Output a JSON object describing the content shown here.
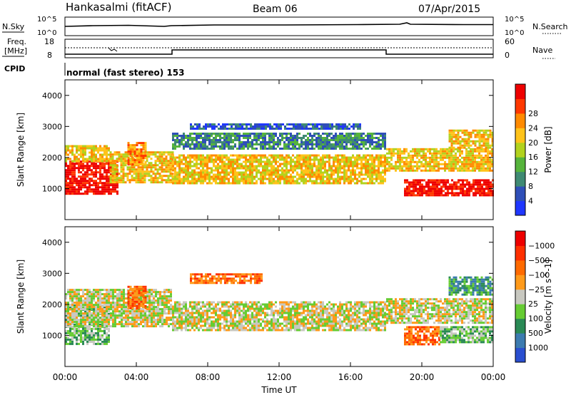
{
  "header": {
    "station": "Hankasalmi (fitACF)",
    "beam": "Beam 06",
    "date": "07/Apr/2015"
  },
  "noise_panel": {
    "left_label": "N.Sky",
    "right_label": "N.Search",
    "left_ticks": [
      "10^5",
      "10^0"
    ],
    "right_ticks": [
      "10^5",
      "10^0"
    ]
  },
  "freq_panel": {
    "left_label_1": "Freq.",
    "left_label_2": "[MHz]",
    "left_ticks": [
      "18",
      "8"
    ],
    "right_label": "Nave",
    "right_ticks": [
      "60",
      "0"
    ],
    "cpid_label": "CPID",
    "cpid_text": "normal (fast stereo) 153"
  },
  "chart_data": [
    {
      "type": "heatmap",
      "title": "",
      "xlabel": "Time UT",
      "ylabel": "Slant Range [km]",
      "x_ticks": [
        "00:00",
        "04:00",
        "08:00",
        "12:00",
        "16:00",
        "20:00",
        "00:00"
      ],
      "y_ticks": [
        "1000",
        "2000",
        "3000",
        "4000"
      ],
      "xlim_hours": [
        0,
        24
      ],
      "ylim_km": [
        0,
        4500
      ],
      "colorbar": {
        "label": "Power [dB]",
        "ticks": [
          "4",
          "8",
          "12",
          "16",
          "20",
          "24",
          "28"
        ],
        "colors": [
          "#1f37ff",
          "#2f4fb8",
          "#3f8a73",
          "#56b43c",
          "#b2d21e",
          "#ffc31a",
          "#ff8a00",
          "#ff3800",
          "#ee0000"
        ]
      },
      "echo_regions": [
        {
          "t0": 0.0,
          "t1": 3.0,
          "r0": 800,
          "r1": 1900,
          "level": 8
        },
        {
          "t0": 0.0,
          "t1": 2.5,
          "r0": 1900,
          "r1": 2400,
          "level": 5
        },
        {
          "t0": 2.5,
          "t1": 6.0,
          "r0": 1200,
          "r1": 2200,
          "level": 5
        },
        {
          "t0": 3.5,
          "t1": 4.5,
          "r0": 1800,
          "r1": 2500,
          "level": 6
        },
        {
          "t0": 6.0,
          "t1": 18.0,
          "r0": 1200,
          "r1": 2100,
          "level": 5
        },
        {
          "t0": 6.0,
          "t1": 18.0,
          "r0": 2300,
          "r1": 2800,
          "level": 2
        },
        {
          "t0": 7.0,
          "t1": 16.5,
          "r0": 2900,
          "r1": 3100,
          "level": 1
        },
        {
          "t0": 18.0,
          "t1": 24.0,
          "r0": 1600,
          "r1": 2300,
          "level": 5
        },
        {
          "t0": 19.0,
          "t1": 24.0,
          "r0": 750,
          "r1": 1300,
          "level": 8
        },
        {
          "t0": 21.5,
          "t1": 24.0,
          "r0": 2300,
          "r1": 2900,
          "level": 5
        }
      ]
    },
    {
      "type": "heatmap",
      "title": "",
      "xlabel": "Time UT",
      "ylabel": "Slant Range [km]",
      "x_ticks": [
        "00:00",
        "04:00",
        "08:00",
        "12:00",
        "16:00",
        "20:00",
        "00:00"
      ],
      "y_ticks": [
        "1000",
        "2000",
        "3000",
        "4000"
      ],
      "xlim_hours": [
        0,
        24
      ],
      "ylim_km": [
        0,
        4500
      ],
      "colorbar": {
        "label": "Velocity [m s^-1]",
        "ticks": [
          "1000",
          "500",
          "100",
          "25",
          "−25",
          "−100",
          "−500",
          "−1000"
        ],
        "colors": [
          "#2a4fd0",
          "#3c7bb0",
          "#2a8a55",
          "#66cc33",
          "#c8c8c0",
          "#ff9a1a",
          "#ff6a00",
          "#ff3000",
          "#ee0000"
        ]
      },
      "echo_regions": [
        {
          "t0": 0.0,
          "t1": 2.5,
          "r0": 700,
          "r1": 2000,
          "level": 3
        },
        {
          "t0": 0.0,
          "t1": 6.0,
          "r0": 1300,
          "r1": 2500,
          "level": 4
        },
        {
          "t0": 3.5,
          "t1": 4.5,
          "r0": 1900,
          "r1": 2600,
          "level": 6
        },
        {
          "t0": 6.0,
          "t1": 18.0,
          "r0": 1200,
          "r1": 2100,
          "level": 4
        },
        {
          "t0": 7.0,
          "t1": 11.0,
          "r0": 2700,
          "r1": 3000,
          "level": 6
        },
        {
          "t0": 18.0,
          "t1": 24.0,
          "r0": 1400,
          "r1": 2200,
          "level": 4
        },
        {
          "t0": 19.0,
          "t1": 21.0,
          "r0": 700,
          "r1": 1300,
          "level": 6
        },
        {
          "t0": 21.0,
          "t1": 24.0,
          "r0": 800,
          "r1": 1300,
          "level": 3
        },
        {
          "t0": 21.5,
          "t1": 24.0,
          "r0": 2300,
          "r1": 2900,
          "level": 2
        }
      ]
    }
  ]
}
